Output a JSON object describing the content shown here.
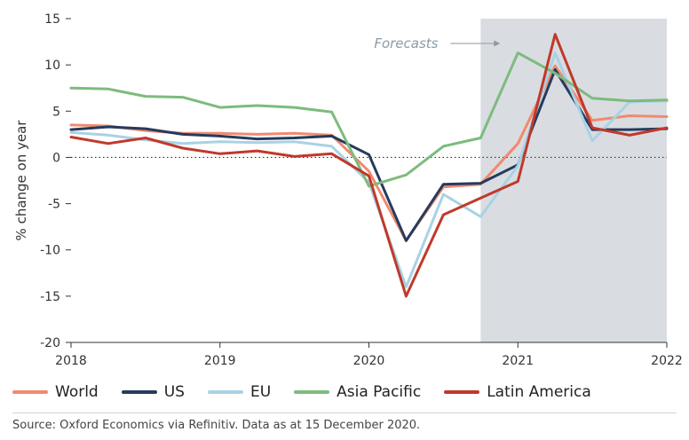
{
  "chart_data": {
    "type": "line",
    "title": "",
    "xlabel": "",
    "ylabel": "% change on year",
    "xlim": [
      2018,
      2022
    ],
    "ylim": [
      -20,
      15
    ],
    "y_ticks": [
      15,
      10,
      5,
      0,
      -5,
      -10,
      -15,
      -20
    ],
    "x_ticks": [
      {
        "value": 2018,
        "label": "2018"
      },
      {
        "value": 2019,
        "label": "2019"
      },
      {
        "value": 2020,
        "label": "2020"
      },
      {
        "value": 2021,
        "label": "2021"
      },
      {
        "value": 2022,
        "label": "2022"
      }
    ],
    "zero_line": "dotted",
    "forecast_region": {
      "start": 2020.75,
      "end": 2022,
      "label": "Forecasts"
    },
    "x": [
      2018.0,
      2018.25,
      2018.5,
      2018.75,
      2019.0,
      2019.25,
      2019.5,
      2019.75,
      2020.0,
      2020.25,
      2020.5,
      2020.75,
      2021.0,
      2021.25,
      2021.5,
      2021.75,
      2022.0
    ],
    "series": [
      {
        "name": "World",
        "color": "#f08a70",
        "values": [
          3.5,
          3.4,
          2.9,
          2.6,
          2.6,
          2.5,
          2.6,
          2.4,
          -1.5,
          -9.0,
          -3.2,
          -2.9,
          1.5,
          9.9,
          4.0,
          4.5,
          4.4
        ]
      },
      {
        "name": "US",
        "color": "#253b5e",
        "values": [
          3.0,
          3.3,
          3.1,
          2.5,
          2.3,
          2.0,
          2.1,
          2.3,
          0.3,
          -9.0,
          -2.9,
          -2.8,
          -0.8,
          9.5,
          3.0,
          3.0,
          3.1
        ]
      },
      {
        "name": "EU",
        "color": "#a9d2e4",
        "values": [
          2.7,
          2.4,
          1.9,
          1.5,
          1.7,
          1.6,
          1.7,
          1.2,
          -2.7,
          -14.0,
          -4.0,
          -6.4,
          -0.9,
          11.3,
          1.8,
          6.0,
          6.1
        ]
      },
      {
        "name": "Asia Pacific",
        "color": "#7dbb7d",
        "values": [
          7.5,
          7.4,
          6.6,
          6.5,
          5.4,
          5.6,
          5.4,
          4.9,
          -3.1,
          -1.9,
          1.2,
          2.1,
          11.3,
          9.1,
          6.4,
          6.1,
          6.2
        ]
      },
      {
        "name": "Latin America",
        "color": "#c0392b",
        "values": [
          2.2,
          1.5,
          2.1,
          1.0,
          0.4,
          0.7,
          0.1,
          0.4,
          -2.0,
          -15.0,
          -6.2,
          -4.4,
          -2.6,
          13.3,
          3.2,
          2.4,
          3.2
        ]
      }
    ],
    "source": "Source: Oxford Economics via Refinitiv. Data as at 15 December 2020."
  },
  "colors": {
    "forecast_shade": "#d9dde1",
    "axis": "#333333",
    "grid_zero": "#333333"
  }
}
